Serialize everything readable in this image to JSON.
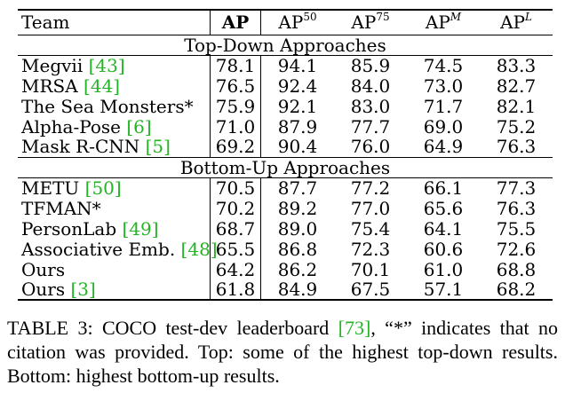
{
  "table": {
    "headers": {
      "team": "Team",
      "ap": "AP",
      "ap50_base": "AP",
      "ap50_sup": "50",
      "ap75_base": "AP",
      "ap75_sup": "75",
      "apm_base": "AP",
      "apm_sup": "M",
      "apl_base": "AP",
      "apl_sup": "L"
    },
    "sections": [
      {
        "title": "Top-Down Approaches",
        "rows": [
          {
            "team": "Megvii ",
            "ref": "[43]",
            "ap": "78.1",
            "ap50": "94.1",
            "ap75": "85.9",
            "apm": "74.5",
            "apl": "83.3"
          },
          {
            "team": "MRSA ",
            "ref": "[44]",
            "ap": "76.5",
            "ap50": "92.4",
            "ap75": "84.0",
            "apm": "73.0",
            "apl": "82.7"
          },
          {
            "team": "The Sea Monsters*",
            "ref": "",
            "ap": "75.9",
            "ap50": "92.1",
            "ap75": "83.0",
            "apm": "71.7",
            "apl": "82.1"
          },
          {
            "team": "Alpha-Pose ",
            "ref": "[6]",
            "ap": "71.0",
            "ap50": "87.9",
            "ap75": "77.7",
            "apm": "69.0",
            "apl": "75.2"
          },
          {
            "team": "Mask R-CNN ",
            "ref": "[5]",
            "ap": "69.2",
            "ap50": "90.4",
            "ap75": "76.0",
            "apm": "64.9",
            "apl": "76.3"
          }
        ]
      },
      {
        "title": "Bottom-Up Approaches",
        "rows": [
          {
            "team": "METU ",
            "ref": "[50]",
            "ap": "70.5",
            "ap50": "87.7",
            "ap75": "77.2",
            "apm": "66.1",
            "apl": "77.3"
          },
          {
            "team": "TFMAN*",
            "ref": "",
            "ap": "70.2",
            "ap50": "89.2",
            "ap75": "77.0",
            "apm": "65.6",
            "apl": "76.3"
          },
          {
            "team": "PersonLab ",
            "ref": "[49]",
            "ap": "68.7",
            "ap50": "89.0",
            "ap75": "75.4",
            "apm": "64.1",
            "apl": "75.5"
          },
          {
            "team": "Associative Emb. ",
            "ref": "[48]",
            "ap": "65.5",
            "ap50": "86.8",
            "ap75": "72.3",
            "apm": "60.6",
            "apl": "72.6"
          },
          {
            "team": "Ours",
            "ref": "",
            "ap": "64.2",
            "ap50": "86.2",
            "ap75": "70.1",
            "apm": "61.0",
            "apl": "68.8"
          },
          {
            "team": "Ours ",
            "ref": "[3]",
            "ap": "61.8",
            "ap50": "84.9",
            "ap75": "67.5",
            "apm": "57.1",
            "apl": "68.2"
          }
        ]
      }
    ]
  },
  "caption": {
    "part1": "TABLE 3: COCO test-dev leaderboard ",
    "ref": "[73]",
    "part2": ", “*” indicates that no citation was provided. Top: some of the highest top-down results. Bottom: highest bottom-up results."
  },
  "colors": {
    "citation": "#22b422"
  }
}
